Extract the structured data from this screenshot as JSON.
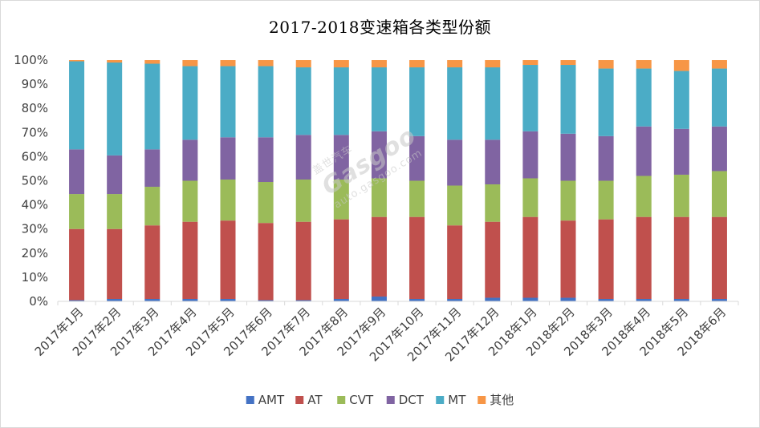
{
  "chart_data": {
    "type": "bar",
    "stacked": true,
    "percent": true,
    "title": "2017-2018变速箱各类型份额",
    "categories": [
      "2017年1月",
      "2017年2月",
      "2017年3月",
      "2017年4月",
      "2017年5月",
      "2017年6月",
      "2017年7月",
      "2017年8月",
      "2017年9月",
      "2017年10月",
      "2017年11月",
      "2017年12月",
      "2018年1月",
      "2018年2月",
      "2018年3月",
      "2018年4月",
      "2018年5月",
      "2018年6月"
    ],
    "yticks": [
      "0%",
      "10%",
      "20%",
      "30%",
      "40%",
      "50%",
      "60%",
      "70%",
      "80%",
      "90%",
      "100%"
    ],
    "ylim": [
      0,
      100
    ],
    "legend_position": "bottom",
    "grid": false,
    "series": [
      {
        "name": "AMT",
        "color": "#4472c4",
        "values": [
          0.5,
          1,
          1,
          1,
          1,
          0.5,
          0.5,
          1,
          2,
          1,
          1,
          1.5,
          1.5,
          1.5,
          1,
          1,
          1,
          1
        ]
      },
      {
        "name": "AT",
        "color": "#c0504d",
        "values": [
          29.5,
          29,
          30.5,
          32,
          32.5,
          32,
          32.5,
          33,
          33,
          34,
          30.5,
          31.5,
          33.5,
          32,
          33,
          34,
          34,
          34
        ]
      },
      {
        "name": "CVT",
        "color": "#9bbb59",
        "values": [
          14.5,
          14.5,
          16,
          17,
          17,
          17,
          17.5,
          16.5,
          16,
          15,
          16.5,
          15.5,
          16,
          16.5,
          16,
          17,
          17.5,
          19
        ]
      },
      {
        "name": "DCT",
        "color": "#8064a2",
        "values": [
          18.5,
          16,
          15.5,
          17,
          17.5,
          18.5,
          18.5,
          18.5,
          19.5,
          18.5,
          19,
          18.5,
          19.5,
          19.5,
          18.5,
          20.5,
          19,
          18.5
        ]
      },
      {
        "name": "MT",
        "color": "#4bacc6",
        "values": [
          36.5,
          38.5,
          35.5,
          30.5,
          29.5,
          29.5,
          28,
          28,
          26.5,
          28.5,
          30,
          30,
          27.5,
          28.5,
          28,
          24,
          24,
          24
        ]
      },
      {
        "name": "其他",
        "color": "#f79646",
        "values": [
          0.5,
          1,
          1.5,
          2.5,
          2.5,
          2.5,
          3,
          3,
          3,
          3,
          3,
          3,
          2,
          2,
          3.5,
          3.5,
          4.5,
          3.5
        ]
      }
    ]
  },
  "watermark": {
    "brand": "Gasgoo",
    "brand_cn": "盖世汽车",
    "url": "auto.gasgoo.com"
  }
}
